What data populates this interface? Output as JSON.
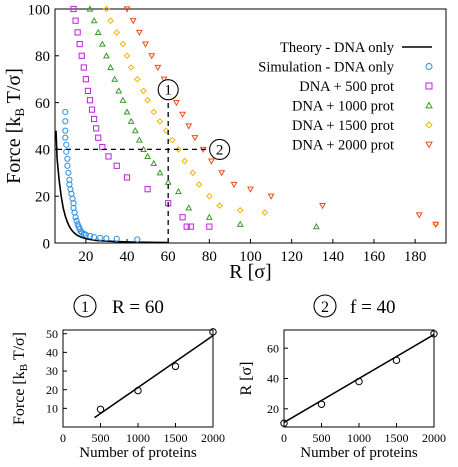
{
  "chart_data": [
    {
      "type": "scatter",
      "xlabel": "R  [σ]",
      "ylabel": "Force  [k",
      "ylabel_sub": "B",
      "ylabel_tail": " T/σ]",
      "xlim": [
        5,
        195
      ],
      "ylim": [
        0,
        100
      ],
      "xticks": [
        20,
        40,
        60,
        80,
        100,
        120,
        140,
        160,
        180
      ],
      "yticks": [
        0,
        20,
        40,
        60,
        80,
        100
      ],
      "legend_position": "top-right",
      "theory": {
        "name": "Theory - DNA only",
        "color": "#000000",
        "x": [
          5.5,
          6,
          7,
          8,
          9,
          10,
          11,
          12,
          13,
          14,
          15,
          16,
          18,
          20,
          22,
          25,
          30,
          35,
          40,
          45,
          50,
          55,
          60
        ],
        "y": [
          48,
          36,
          27,
          20,
          15,
          11.5,
          9,
          7,
          5.6,
          4.6,
          3.8,
          3.2,
          2.4,
          1.9,
          1.5,
          1.1,
          0.8,
          0.6,
          0.45,
          0.35,
          0.3,
          0.25,
          0.2
        ]
      },
      "series": [
        {
          "name": "Simulation - DNA only",
          "color": "#2b8fe3",
          "marker": "circle",
          "x": [
            10,
            10,
            10,
            10,
            10.5,
            10.5,
            11,
            11,
            11.5,
            12,
            12,
            12.5,
            13,
            13.5,
            14,
            14,
            14.5,
            15,
            15.5,
            16,
            16.5,
            17,
            17.5,
            18,
            19,
            20,
            22,
            24,
            27,
            30,
            35,
            45
          ],
          "y": [
            56,
            52,
            48,
            45,
            42,
            39,
            36,
            33,
            30,
            27,
            25,
            23,
            21,
            19,
            17,
            15,
            13,
            11,
            9.5,
            8,
            7,
            6,
            5,
            4.5,
            4,
            3.5,
            3,
            2.5,
            2.2,
            2,
            1.8,
            1.5
          ]
        },
        {
          "name": "DNA + 500 prot",
          "color": "#c020e0",
          "marker": "square",
          "x": [
            14,
            15,
            16,
            17,
            18,
            19,
            20,
            21,
            22,
            23,
            24,
            25,
            26,
            28,
            31,
            35,
            40,
            50,
            60,
            67,
            69,
            71,
            80
          ],
          "y": [
            100,
            95,
            90,
            85,
            80,
            75,
            70,
            65,
            61,
            57,
            53,
            49,
            45,
            41,
            37,
            33,
            28,
            23,
            17,
            11,
            7,
            7,
            7
          ]
        },
        {
          "name": "DNA + 1000 prot",
          "color": "#3a9a2a",
          "marker": "triangle",
          "x": [
            22,
            24,
            26,
            28,
            30,
            32,
            34,
            36,
            38,
            40,
            42,
            44,
            46,
            48,
            50,
            53,
            56,
            60,
            65,
            70,
            80,
            95,
            132
          ],
          "y": [
            100,
            95,
            90,
            85,
            80,
            75,
            70,
            65,
            61,
            56,
            52,
            48,
            44,
            40,
            37,
            34,
            30,
            26,
            22,
            15,
            11,
            8,
            7
          ]
        },
        {
          "name": "DNA + 1500 prot",
          "color": "#f0b400",
          "marker": "diamond",
          "x": [
            30,
            32,
            35,
            38,
            40,
            42,
            45,
            48,
            50,
            53,
            56,
            59,
            62,
            65,
            68,
            72,
            75,
            80,
            85,
            95,
            107,
            190
          ],
          "y": [
            100,
            95,
            90,
            85,
            80,
            75,
            70,
            65,
            61,
            56,
            52,
            48,
            44,
            40,
            35,
            30,
            25,
            20,
            16,
            14,
            13,
            8
          ]
        },
        {
          "name": "DNA + 2000 prot",
          "color": "#f04a1e",
          "marker": "triangle-down",
          "x": [
            40,
            43,
            46,
            49,
            52,
            55,
            58,
            61,
            64,
            67,
            70,
            73,
            77,
            81,
            86,
            92,
            100,
            110,
            135,
            182,
            190
          ],
          "y": [
            100,
            95,
            90,
            85,
            80,
            75,
            70,
            65,
            60,
            55,
            50,
            45,
            40,
            35,
            30,
            25,
            23,
            20,
            16,
            12,
            8
          ]
        }
      ],
      "markers": [
        {
          "label": "1",
          "type": "vertical",
          "x": 60
        },
        {
          "label": "2",
          "type": "horizontal",
          "y": 40
        }
      ]
    },
    {
      "type": "scatter",
      "header_index": "1",
      "header_text": "R = 60",
      "xlabel": "Number of proteins",
      "ylabel": "Force  [k",
      "ylabel_sub": "B",
      "ylabel_tail": " T/σ]",
      "xlim": [
        0,
        2000
      ],
      "ylim": [
        0,
        52
      ],
      "xticks": [
        0,
        500,
        1000,
        1500,
        2000
      ],
      "yticks": [
        10,
        20,
        30,
        40,
        50
      ],
      "points": {
        "x": [
          500,
          1000,
          1500,
          2000
        ],
        "y": [
          9.5,
          19.5,
          32.5,
          51
        ]
      },
      "fit": {
        "x": [
          420,
          2000
        ],
        "y": [
          5,
          49
        ]
      }
    },
    {
      "type": "scatter",
      "header_index": "2",
      "header_text": "f = 40",
      "xlabel": "Number of proteins",
      "ylabel": "R  [σ]",
      "xlim": [
        0,
        2000
      ],
      "ylim": [
        8,
        72
      ],
      "xticks": [
        0,
        500,
        1000,
        1500,
        2000
      ],
      "yticks": [
        20,
        40,
        60
      ],
      "points": {
        "x": [
          0,
          500,
          1000,
          1500,
          2000
        ],
        "y": [
          10.5,
          23,
          38,
          52,
          69.5
        ]
      },
      "fit": {
        "x": [
          0,
          2000
        ],
        "y": [
          11,
          69
        ]
      }
    }
  ]
}
